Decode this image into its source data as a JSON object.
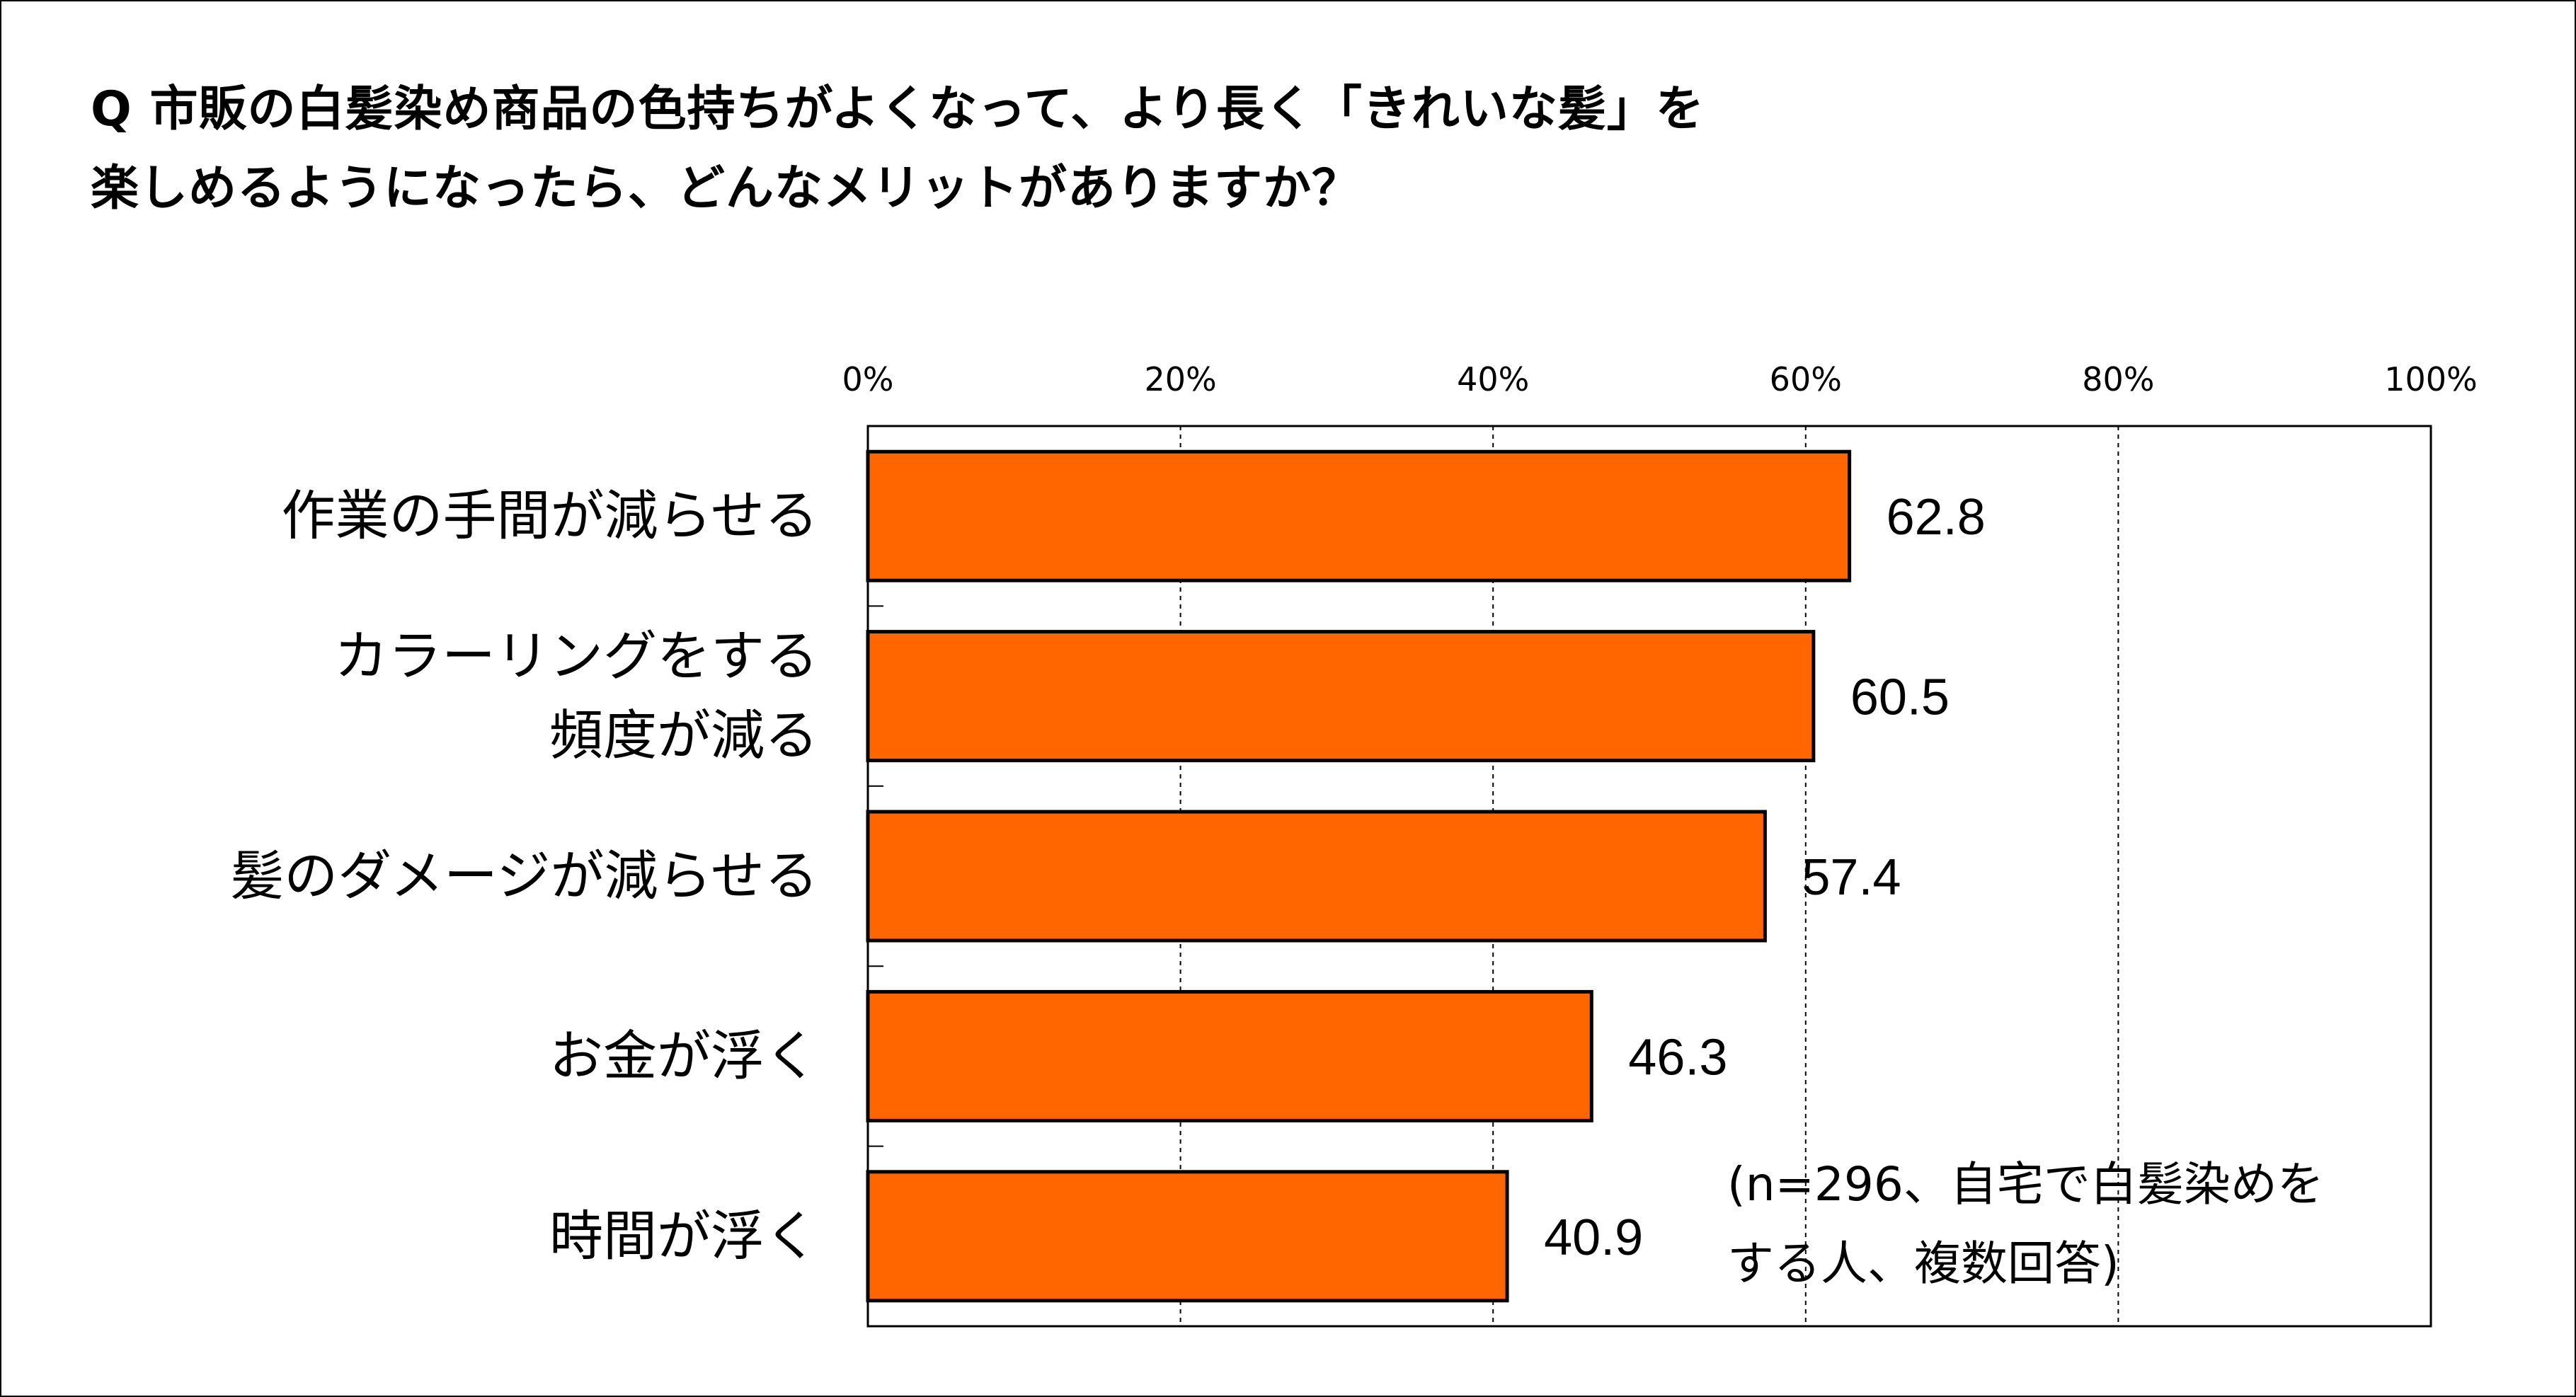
{
  "question": {
    "line1": "Q 市販の白髪染め商品の色持ちがよくなって、より長く「きれいな髪」を",
    "line2": "楽しめるようになったら、どんなメリットがありますか？"
  },
  "note": {
    "line1": "(n=296、自宅で白髪染めを",
    "line2": "する人、複数回答)"
  },
  "chart_data": {
    "type": "bar",
    "orientation": "horizontal",
    "categories": [
      [
        "作業の手間が減らせる"
      ],
      [
        "カラーリングをする",
        "頻度が減る"
      ],
      [
        "髪のダメージが減らせる"
      ],
      [
        "お金が浮く"
      ],
      [
        "時間が浮く"
      ]
    ],
    "values": [
      62.8,
      60.5,
      57.4,
      46.3,
      40.9
    ],
    "value_labels": [
      "62.8",
      "60.5",
      "57.4",
      "46.3",
      "40.9"
    ],
    "x_ticks": [
      "0%",
      "20%",
      "40%",
      "60%",
      "80%",
      "100%"
    ],
    "xlim": [
      0,
      100
    ],
    "tick_axis_position": "top",
    "grid": "vertical dashed",
    "bar_color": "#FF6600",
    "bar_edge_color": "#000000"
  }
}
